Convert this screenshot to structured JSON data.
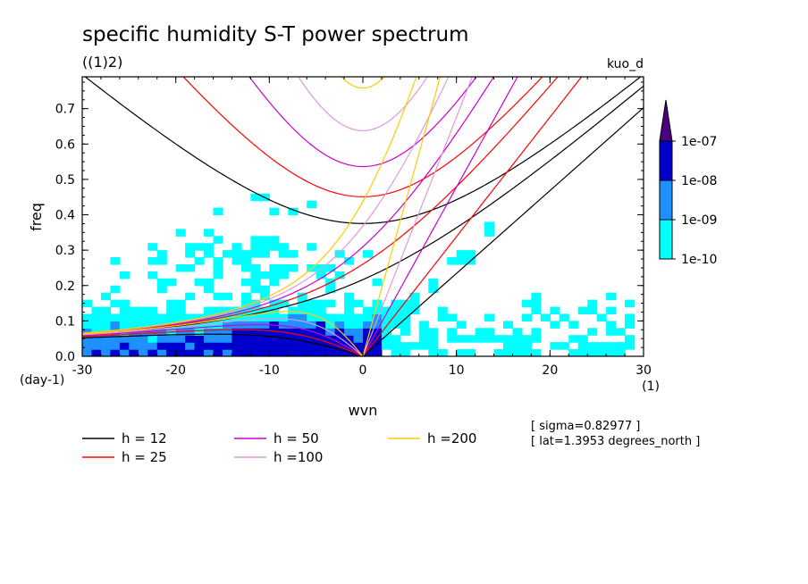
{
  "chart_data": {
    "type": "heatmap",
    "title": "specific humidity S-T power spectrum",
    "subtitle": "((1)2)",
    "tag": "kuo_d",
    "xlabel": "wvn",
    "ylabel": "freq",
    "x_unit": "(1)",
    "y_unit": "(day-1)",
    "xlim": [
      -30,
      30
    ],
    "ylim": [
      0,
      0.79
    ],
    "xticks": [
      "-30",
      "-20",
      "-10",
      "0",
      "10",
      "20",
      "30"
    ],
    "yticks": [
      "0.0",
      "0.1",
      "0.2",
      "0.3",
      "0.4",
      "0.5",
      "0.6",
      "0.7"
    ],
    "colorbar": {
      "levels": [
        "1e-10",
        "1e-09",
        "1e-08",
        "1e-07"
      ],
      "colors": [
        "#00ffff",
        "#1e90ff",
        "#0000cd",
        "#4b0082"
      ]
    },
    "annotations": [
      "[ sigma=0.82977 ]",
      "[ lat=1.3953 degrees_north ]"
    ],
    "series": [
      {
        "name": "h = 12",
        "color": "#000000"
      },
      {
        "name": "h = 25",
        "color": "#ff0000"
      },
      {
        "name": "h = 50",
        "color": "#cc00cc"
      },
      {
        "name": "h =100",
        "color": "#dd99dd"
      },
      {
        "name": "h =200",
        "color": "#ffcc00"
      }
    ]
  }
}
